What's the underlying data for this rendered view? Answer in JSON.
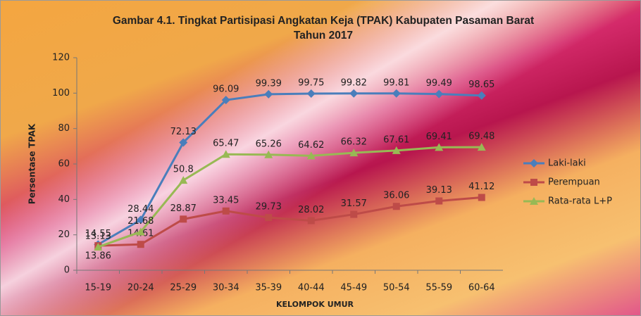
{
  "chart_data": {
    "type": "line",
    "title": "Gambar 4.1. Tingkat Partisipasi Angkatan Keja (TPAK) Kabupaten Pasaman Barat Tahun 2017",
    "x_label": "KELOMPOK UMUR",
    "y_label": "Persentase TPAK",
    "categories": [
      "15-19",
      "20-24",
      "25-29",
      "30-34",
      "35-39",
      "40-44",
      "45-49",
      "50-54",
      "55-59",
      "60-64"
    ],
    "series": [
      {
        "name": "Laki-laki",
        "color": "#4a7ebb",
        "marker": "diamond",
        "values": [
          14.55,
          28.44,
          72.13,
          96.09,
          99.39,
          99.75,
          99.82,
          99.81,
          99.49,
          98.65
        ]
      },
      {
        "name": "Perempuan",
        "color": "#be4b48",
        "marker": "square",
        "values": [
          13.86,
          14.61,
          28.87,
          33.45,
          29.73,
          28.02,
          31.57,
          36.06,
          39.13,
          41.12
        ]
      },
      {
        "name": "Rata-rata L+P",
        "color": "#98b954",
        "marker": "triangle",
        "values": [
          13.13,
          21.68,
          50.8,
          65.47,
          65.26,
          64.62,
          66.32,
          67.61,
          69.41,
          69.48
        ]
      }
    ],
    "ylim": [
      0,
      120
    ],
    "yticks": [
      0,
      20,
      40,
      60,
      80,
      100,
      120
    ],
    "legend": "right"
  }
}
